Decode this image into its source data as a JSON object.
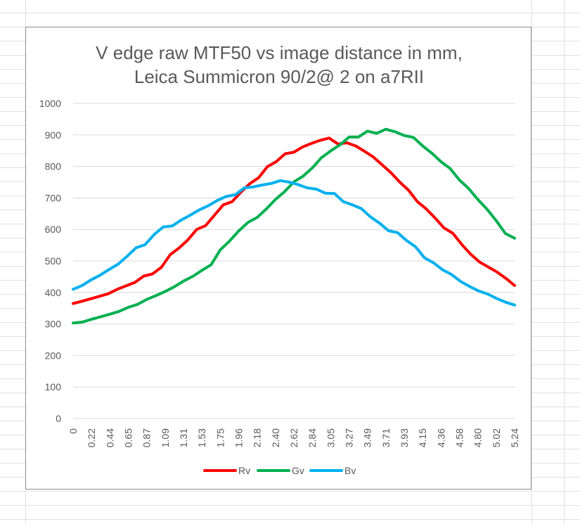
{
  "colors": {
    "Rv": "#ff0000",
    "Gv": "#00b050",
    "Bv": "#00b0f0",
    "gridline": "#d9d9d9",
    "sheet_grid": "#e1e1e1",
    "text": "#595959"
  },
  "chart_data": {
    "type": "line",
    "title": [
      "V edge raw MTF50 vs image distance in mm,",
      "Leica Summicron 90/2@ 2 on a7RII"
    ],
    "xlabel": "",
    "ylabel": "",
    "ylim": [
      0,
      1000
    ],
    "y_ticks": [
      0,
      100,
      200,
      300,
      400,
      500,
      600,
      700,
      800,
      900,
      1000
    ],
    "grid": true,
    "legend_position": "bottom",
    "x_tick_labels": [
      "0",
      "0.22",
      "0.44",
      "0.65",
      "0.87",
      "1.09",
      "1.31",
      "1.53",
      "1.75",
      "1.96",
      "2.18",
      "2.40",
      "2.62",
      "2.84",
      "3.05",
      "3.27",
      "3.49",
      "3.71",
      "3.93",
      "4.15",
      "4.36",
      "4.58",
      "4.80",
      "5.02",
      "5.24"
    ],
    "series": [
      {
        "name": "Rv",
        "values": [
          365,
          372,
          380,
          388,
          396,
          410,
          421,
          432,
          452,
          459,
          480,
          520,
          541,
          567,
          600,
          612,
          645,
          678,
          688,
          718,
          745,
          764,
          799,
          815,
          840,
          845,
          862,
          873,
          883,
          890,
          871,
          875,
          865,
          848,
          830,
          805,
          780,
          750,
          724,
          688,
          665,
          636,
          605,
          588,
          553,
          522,
          497,
          481,
          465,
          445,
          422
        ]
      },
      {
        "name": "Gv",
        "values": [
          303,
          306,
          315,
          323,
          331,
          340,
          353,
          362,
          378,
          390,
          403,
          418,
          436,
          451,
          470,
          488,
          535,
          563,
          595,
          622,
          638,
          665,
          695,
          720,
          751,
          769,
          795,
          828,
          849,
          868,
          893,
          893,
          912,
          905,
          918,
          910,
          898,
          892,
          865,
          842,
          815,
          793,
          757,
          730,
          695,
          664,
          628,
          587,
          572
        ]
      },
      {
        "name": "Bv",
        "values": [
          410,
          422,
          440,
          455,
          473,
          490,
          515,
          542,
          552,
          584,
          608,
          611,
          630,
          645,
          662,
          675,
          692,
          705,
          710,
          732,
          735,
          741,
          746,
          755,
          750,
          742,
          732,
          728,
          715,
          714,
          688,
          678,
          666,
          640,
          620,
          596,
          590,
          565,
          545,
          510,
          494,
          472,
          457,
          435,
          419,
          405,
          395,
          381,
          369,
          360
        ]
      }
    ]
  }
}
